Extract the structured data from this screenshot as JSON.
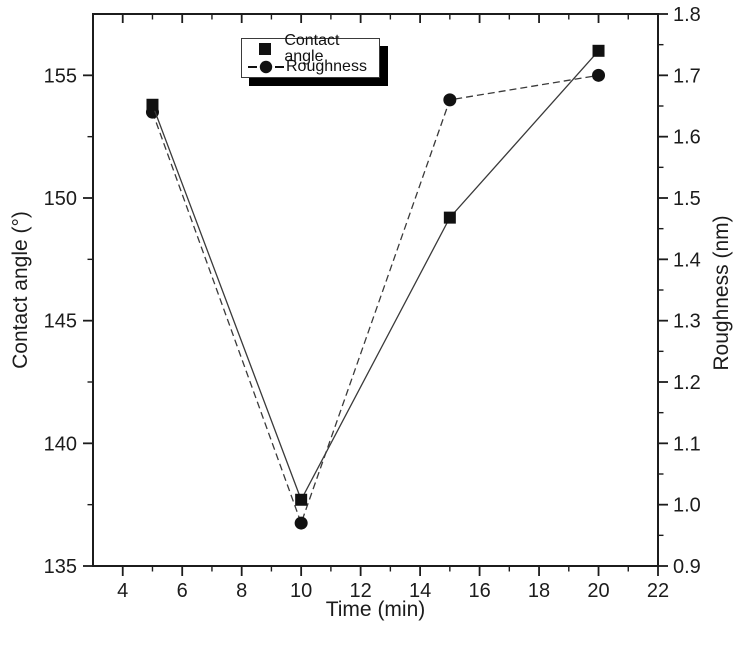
{
  "figure": {
    "background": "#ffffff",
    "axis_color": "#1c1c1c",
    "marker_color": "#111111",
    "line_color": "#3a3a3a",
    "legend_shadow_color": "#000000"
  },
  "chart_data": {
    "type": "line",
    "title": "",
    "xlabel": "Time (min)",
    "ylabel_left": "Contact angle (°)",
    "ylabel_right": "Roughness (nm)",
    "xlim": [
      3,
      22
    ],
    "ylim_left": [
      135,
      157.5
    ],
    "ylim_right": [
      0.9,
      1.8
    ],
    "grid": false,
    "legend": {
      "position": "top-center",
      "has_shadow": true,
      "entries": [
        {
          "label": "Contact angle",
          "marker": "square",
          "line": "none"
        },
        {
          "label": "Roughness",
          "marker": "circle",
          "line": "dashed"
        }
      ]
    },
    "x": [
      5,
      10,
      15,
      20
    ],
    "series": [
      {
        "name": "Contact angle",
        "axis": "left",
        "marker": "square",
        "line_style": "solid",
        "values": [
          153.8,
          137.7,
          149.2,
          156.0
        ]
      },
      {
        "name": "Roughness",
        "axis": "right",
        "marker": "circle",
        "line_style": "dashed",
        "values": [
          1.64,
          0.97,
          1.66,
          1.7
        ]
      }
    ],
    "x_axis": {
      "major_ticks": [
        4,
        6,
        8,
        10,
        12,
        14,
        16,
        18,
        20,
        22
      ],
      "major_labels": [
        "4",
        "6",
        "8",
        "10",
        "12",
        "14",
        "16",
        "18",
        "20",
        "22"
      ],
      "minor_ticks": [
        5,
        7,
        9,
        11,
        13,
        15,
        17,
        19,
        21
      ]
    },
    "y_left_axis": {
      "major_ticks": [
        135,
        140,
        145,
        150,
        155
      ],
      "major_labels": [
        "135",
        "140",
        "145",
        "150",
        "155"
      ],
      "minor_ticks": [
        137.5,
        142.5,
        147.5,
        152.5
      ]
    },
    "y_right_axis": {
      "major_ticks": [
        0.9,
        1.0,
        1.1,
        1.2,
        1.3,
        1.4,
        1.5,
        1.6,
        1.7,
        1.8
      ],
      "major_labels": [
        "0.9",
        "1.0",
        "1.1",
        "1.2",
        "1.3",
        "1.4",
        "1.5",
        "1.6",
        "1.7",
        "1.8"
      ],
      "minor_ticks": [
        0.95,
        1.05,
        1.15,
        1.25,
        1.35,
        1.45,
        1.55,
        1.65,
        1.75
      ]
    }
  }
}
